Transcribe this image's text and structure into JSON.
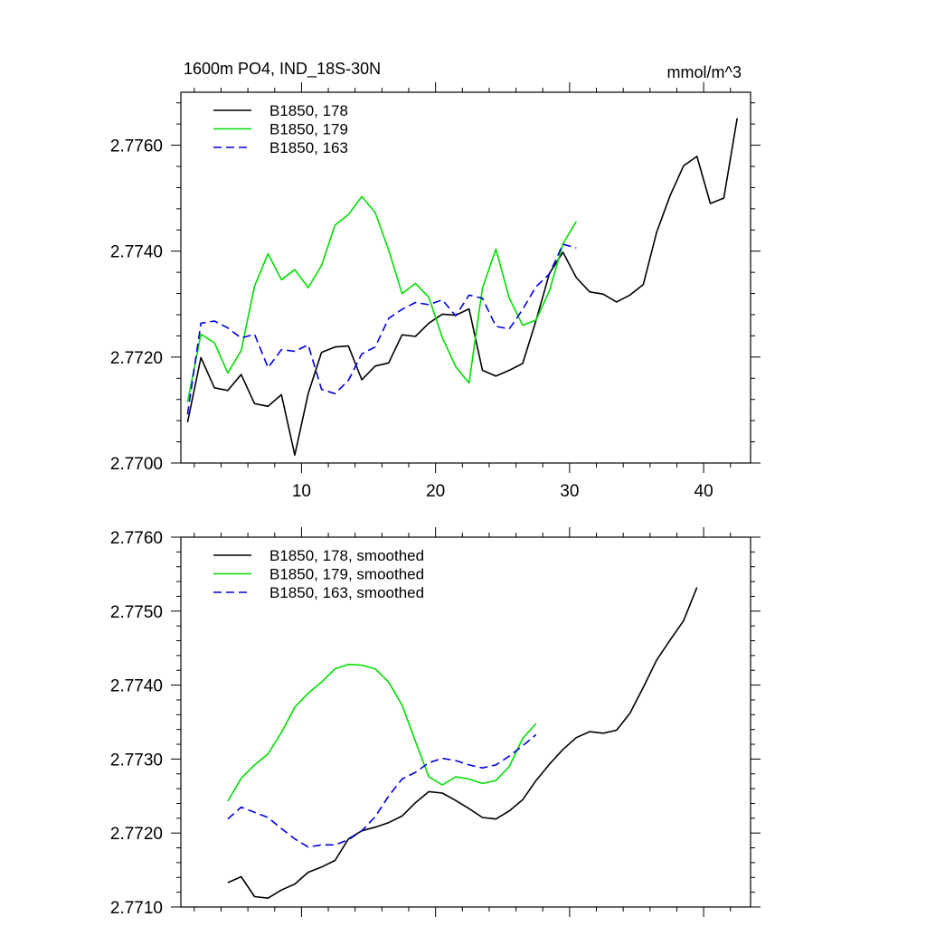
{
  "chart_data": [
    {
      "type": "line",
      "title_left": "1600m PO4, IND_18S-30N",
      "title_right": "mmol/m^3",
      "xlabel": "",
      "ylabel": "",
      "xlim": [
        1,
        43.5
      ],
      "ylim": [
        2.77,
        2.777
      ],
      "xticks": [
        10,
        20,
        30,
        40
      ],
      "xtick_labels": [
        "10",
        "20",
        "30",
        "40"
      ],
      "yticks": [
        2.77,
        2.772,
        2.774,
        2.776
      ],
      "ytick_labels": [
        "2.7700",
        "2.7720",
        "2.7740",
        "2.7760"
      ],
      "legend_position": "top-left",
      "series": [
        {
          "name": "B1850, 178",
          "color": "#000000",
          "dash": "solid",
          "x": [
            1.5,
            2.5,
            3.5,
            4.5,
            5.5,
            6.5,
            7.5,
            8.5,
            9.5,
            10.5,
            11.5,
            12.5,
            13.5,
            14.5,
            15.5,
            16.5,
            17.5,
            18.5,
            19.5,
            20.5,
            21.5,
            22.5,
            23.5,
            24.5,
            25.5,
            26.5,
            27.5,
            28.5,
            29.5,
            30.5,
            31.5,
            32.5,
            33.5,
            34.5,
            35.5,
            36.5,
            37.5,
            38.5,
            39.5,
            40.5,
            41.5,
            42.5
          ],
          "values": [
            2.77077,
            2.77199,
            2.77142,
            2.77137,
            2.77167,
            2.77112,
            2.77107,
            2.77129,
            2.77015,
            2.77131,
            2.77209,
            2.77219,
            2.77221,
            2.77157,
            2.77183,
            2.77189,
            2.77242,
            2.77239,
            2.77264,
            2.77281,
            2.77279,
            2.77291,
            2.77175,
            2.77164,
            2.77175,
            2.77188,
            2.77269,
            2.77358,
            2.77398,
            2.7735,
            2.77323,
            2.77319,
            2.77304,
            2.77317,
            2.77337,
            2.77436,
            2.77505,
            2.77561,
            2.77579,
            2.7749,
            2.775,
            2.77651
          ]
        },
        {
          "name": "B1850, 179",
          "color": "#00dd00",
          "dash": "solid",
          "x": [
            1.5,
            2.5,
            3.5,
            4.5,
            5.5,
            6.5,
            7.5,
            8.5,
            9.5,
            10.5,
            11.5,
            12.5,
            13.5,
            14.5,
            15.5,
            16.5,
            17.5,
            18.5,
            19.5,
            20.5,
            21.5,
            22.5,
            23.5,
            24.5,
            25.5,
            26.5,
            27.5,
            28.5,
            29.5,
            30.5
          ],
          "values": [
            2.77115,
            2.77243,
            2.77227,
            2.7717,
            2.77212,
            2.77334,
            2.77395,
            2.77346,
            2.77365,
            2.77331,
            2.77373,
            2.77449,
            2.77469,
            2.77503,
            2.77473,
            2.77402,
            2.7732,
            2.77339,
            2.77313,
            2.77237,
            2.77182,
            2.77151,
            2.7733,
            2.77404,
            2.77311,
            2.7726,
            2.7727,
            2.77325,
            2.77414,
            2.77456
          ]
        },
        {
          "name": "B1850, 163",
          "color": "#0000dd",
          "dash": "dashed",
          "x": [
            1.5,
            2.5,
            3.5,
            4.5,
            5.5,
            6.5,
            7.5,
            8.5,
            9.5,
            10.5,
            11.5,
            12.5,
            13.5,
            14.5,
            15.5,
            16.5,
            17.5,
            18.5,
            19.5,
            20.5,
            21.5,
            22.5,
            23.5,
            24.5,
            25.5,
            26.5,
            27.5,
            28.5,
            29.5,
            30.5
          ],
          "values": [
            2.77092,
            2.77264,
            2.77268,
            2.77255,
            2.77236,
            2.77243,
            2.7718,
            2.77214,
            2.77211,
            2.77223,
            2.77139,
            2.77131,
            2.77156,
            2.77206,
            2.77219,
            2.77273,
            2.7729,
            2.77303,
            2.77299,
            2.77308,
            2.77278,
            2.77317,
            2.77311,
            2.77258,
            2.77253,
            2.7729,
            2.77333,
            2.77357,
            2.77413,
            2.77406
          ]
        }
      ]
    },
    {
      "type": "line",
      "xlabel": "",
      "ylabel": "",
      "xlim": [
        1,
        43.5
      ],
      "ylim": [
        2.771,
        2.776
      ],
      "xticks": [
        10,
        20,
        30,
        40
      ],
      "yticks": [
        2.771,
        2.772,
        2.773,
        2.774,
        2.775,
        2.776
      ],
      "ytick_labels": [
        "2.7710",
        "2.7720",
        "2.7730",
        "2.7740",
        "2.7750",
        "2.7760"
      ],
      "legend_position": "top-left",
      "series": [
        {
          "name": "B1850, 178, smoothed",
          "color": "#000000",
          "dash": "solid",
          "x": [
            4.5,
            5.5,
            6.5,
            7.5,
            8.5,
            9.5,
            10.5,
            11.5,
            12.5,
            13.5,
            14.5,
            15.5,
            16.5,
            17.5,
            18.5,
            19.5,
            20.5,
            21.5,
            22.5,
            23.5,
            24.5,
            25.5,
            26.5,
            27.5,
            28.5,
            29.5,
            30.5,
            31.5,
            32.5,
            33.5,
            34.5,
            35.5,
            36.5,
            37.5,
            38.5,
            39.5
          ],
          "values": [
            2.77133,
            2.77141,
            2.77114,
            2.77112,
            2.77123,
            2.77131,
            2.77147,
            2.77154,
            2.77163,
            2.77192,
            2.77203,
            2.77208,
            2.77214,
            2.77223,
            2.77241,
            2.77256,
            2.77254,
            2.77244,
            2.77233,
            2.77221,
            2.77219,
            2.7723,
            2.77245,
            2.77271,
            2.77293,
            2.77313,
            2.77329,
            2.77337,
            2.77335,
            2.77339,
            2.77362,
            2.77397,
            2.77434,
            2.77461,
            2.77487,
            2.77532
          ]
        },
        {
          "name": "B1850, 179, smoothed",
          "color": "#00dd00",
          "dash": "solid",
          "x": [
            4.5,
            5.5,
            6.5,
            7.5,
            8.5,
            9.5,
            10.5,
            11.5,
            12.5,
            13.5,
            14.5,
            15.5,
            16.5,
            17.5,
            18.5,
            19.5,
            20.5,
            21.5,
            22.5,
            23.5,
            24.5,
            25.5,
            26.5,
            27.5
          ],
          "values": [
            2.77243,
            2.77274,
            2.77292,
            2.77307,
            2.77336,
            2.7737,
            2.77389,
            2.77404,
            2.77422,
            2.77428,
            2.77427,
            2.77422,
            2.77404,
            2.77373,
            2.77324,
            2.77276,
            2.77265,
            2.77276,
            2.77273,
            2.77267,
            2.77271,
            2.7729,
            2.77328,
            2.77348
          ]
        },
        {
          "name": "B1850, 163, smoothed",
          "color": "#0000dd",
          "dash": "dashed",
          "x": [
            4.5,
            5.5,
            6.5,
            7.5,
            8.5,
            9.5,
            10.5,
            11.5,
            12.5,
            13.5,
            14.5,
            15.5,
            16.5,
            17.5,
            18.5,
            19.5,
            20.5,
            21.5,
            22.5,
            23.5,
            24.5,
            25.5,
            26.5,
            27.5
          ],
          "values": [
            2.77219,
            2.77235,
            2.77228,
            2.77221,
            2.77206,
            2.77192,
            2.77181,
            2.77184,
            2.77184,
            2.77191,
            2.77203,
            2.77222,
            2.7725,
            2.77273,
            2.77282,
            2.77295,
            2.77301,
            2.77298,
            2.77292,
            2.77288,
            2.77292,
            2.77304,
            2.77318,
            2.77333
          ]
        }
      ]
    }
  ]
}
